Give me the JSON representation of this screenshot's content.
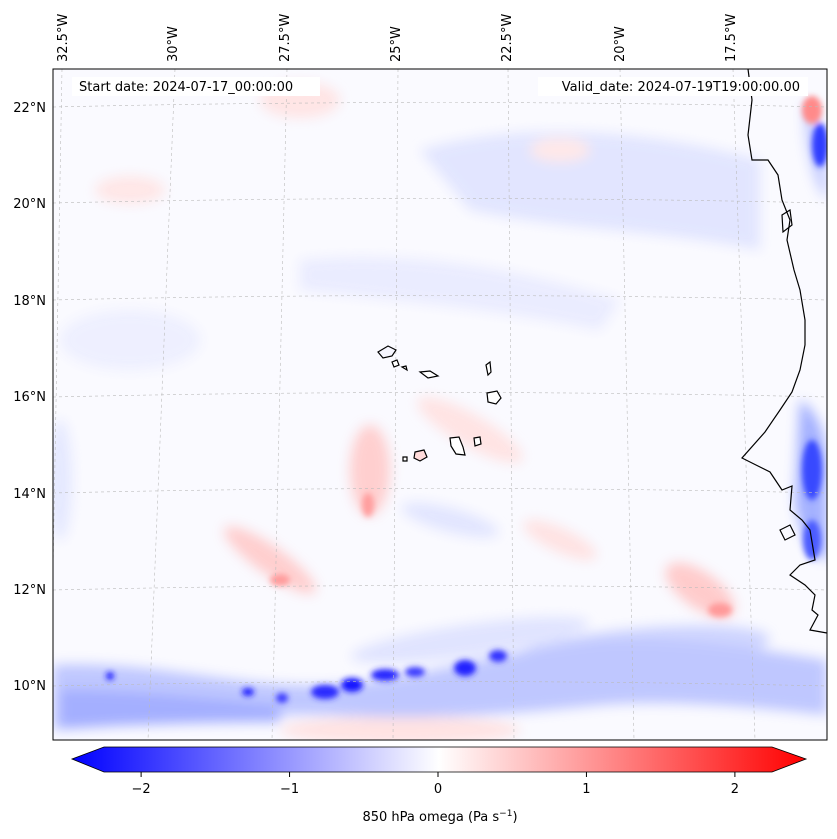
{
  "map": {
    "start_date": "Start date: 2024-07-17_00:00:00",
    "valid_date": "Valid_date: 2024-07-19T19:00:00.00",
    "lon_labels": [
      "32.5°W",
      "30°W",
      "27.5°W",
      "25°W",
      "22.5°W",
      "20°W",
      "17.5°W"
    ],
    "lat_labels": [
      "22°N",
      "20°N",
      "18°N",
      "16°N",
      "14°N",
      "12°N",
      "10°N"
    ],
    "field": "850 hPa omega",
    "units": "Pa s⁻¹"
  },
  "colorbar": {
    "label": "850 hPa omega (Pa s",
    "label_sup": "−1",
    "label_close": ")",
    "ticks": [
      "−2",
      "−1",
      "0",
      "1",
      "2"
    ],
    "tick_values": [
      -2,
      -1,
      0,
      1,
      2
    ],
    "min": -2.5,
    "max": 2.5,
    "colors": {
      "negative": "#0000ff",
      "zero": "#ffffff",
      "positive": "#ff0000"
    }
  }
}
